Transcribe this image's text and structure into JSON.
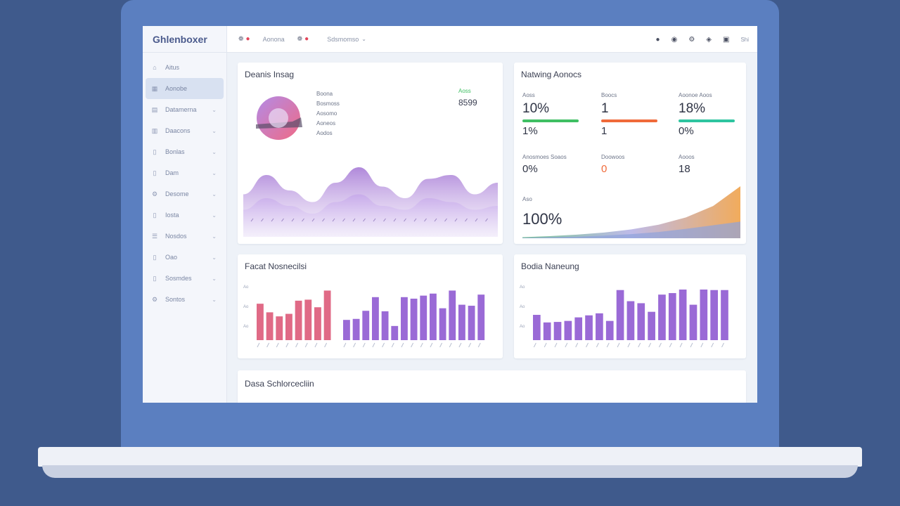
{
  "sidebar": {
    "brand": "Ghlenboxer",
    "items": [
      {
        "label": "Aitus",
        "icon": "home-icon",
        "active": false,
        "chevron": false
      },
      {
        "label": "Aonobe",
        "icon": "grid-icon",
        "active": true,
        "chevron": false
      },
      {
        "label": "Datamerna",
        "icon": "chart-icon",
        "active": false,
        "chevron": true
      },
      {
        "label": "Daacons",
        "icon": "folder-icon",
        "active": false,
        "chevron": true
      },
      {
        "label": "Bonlas",
        "icon": "file-icon",
        "active": false,
        "chevron": true
      },
      {
        "label": "Dam",
        "icon": "file-icon",
        "active": false,
        "chevron": true
      },
      {
        "label": "Desome",
        "icon": "gear-icon",
        "active": false,
        "chevron": true
      },
      {
        "label": "Iosta",
        "icon": "file-icon",
        "active": false,
        "chevron": true
      },
      {
        "label": "Nosdos",
        "icon": "list-icon",
        "active": false,
        "chevron": true
      },
      {
        "label": "Oao",
        "icon": "file-icon",
        "active": false,
        "chevron": true
      },
      {
        "label": "Sosmdes",
        "icon": "file-icon",
        "active": false,
        "chevron": true
      },
      {
        "label": "Sontos",
        "icon": "gear-icon",
        "active": false,
        "chevron": true
      }
    ]
  },
  "topbar": {
    "links": [
      "Aonona",
      "Sdsmomso"
    ],
    "menu": "Shi",
    "icons": [
      "bell-icon",
      "user-icon",
      "settings-icon",
      "message-icon",
      "lock-icon"
    ]
  },
  "card1": {
    "title": "Deanis Insag",
    "legend": [
      "Boona",
      "Bosmoss",
      "Aosomo",
      "Aoneos",
      "Aodos"
    ],
    "stat_label": "Aoss",
    "stat_value": "8599",
    "chart_data": {
      "type": "area",
      "series": [
        {
          "name": "",
          "values": [
            0.55,
            0.8,
            0.6,
            0.45,
            0.7,
            0.9,
            0.65,
            0.5,
            0.75,
            0.8,
            0.55,
            0.7
          ]
        },
        {
          "name": "",
          "values": [
            0.35,
            0.5,
            0.4,
            0.3,
            0.45,
            0.55,
            0.4,
            0.35,
            0.5,
            0.45,
            0.35,
            0.4
          ]
        }
      ]
    }
  },
  "card2": {
    "title": "Natwing Aonocs",
    "kpis": [
      {
        "label": "Aoss",
        "value": "10%",
        "color": "#3fbf63",
        "sub": "1%"
      },
      {
        "label": "Boocs",
        "value": "1",
        "color": "#f06a3a",
        "sub": "1"
      },
      {
        "label": "Aoonoe Aoos",
        "value": "18%",
        "color": "#2ec5a0",
        "sub": "0%"
      }
    ],
    "row2": [
      {
        "label": "Anosmoes Soaos",
        "value": "0%"
      },
      {
        "label": "Doowoos",
        "value": "0"
      },
      {
        "label": "Aooos",
        "value": "18"
      }
    ],
    "total_label": "Aso",
    "total_value": "100%",
    "chart_data": {
      "type": "area",
      "series": [
        {
          "name": "",
          "values": [
            0.02,
            0.04,
            0.07,
            0.11,
            0.17,
            0.26,
            0.4,
            0.62,
            1.0
          ]
        },
        {
          "name": "",
          "values": [
            0.01,
            0.02,
            0.03,
            0.05,
            0.08,
            0.12,
            0.18,
            0.25,
            0.32
          ]
        }
      ]
    }
  },
  "card3": {
    "title": "Facat Nosnecilsi",
    "chart_data": {
      "type": "bar",
      "ylabels": [
        "Ao",
        "Ao",
        "Ao"
      ],
      "groups": [
        {
          "color": "#e06a86",
          "values": [
            0.72,
            0.55,
            0.47,
            0.52,
            0.78,
            0.8,
            0.65,
            0.98
          ]
        },
        {
          "color": "#9a6ad6",
          "values": [
            0.4,
            0.42,
            0.58,
            0.85,
            0.57,
            0.28,
            0.85,
            0.82,
            0.88,
            0.92,
            0.63,
            0.98,
            0.7,
            0.68,
            0.9
          ]
        }
      ]
    }
  },
  "card4": {
    "title": "Bodia Naneung",
    "chart_data": {
      "type": "bar",
      "ylabels": [
        "Ao",
        "Ao",
        "Ao"
      ],
      "groups": [
        {
          "color": "#9a6ad6",
          "values": [
            0.5,
            0.35,
            0.36,
            0.38,
            0.45,
            0.49,
            0.53,
            0.38,
            0.99,
            0.77,
            0.73,
            0.56,
            0.9,
            0.93,
            1.0,
            0.7,
            1.0,
            0.99,
            0.99
          ]
        }
      ]
    }
  },
  "card5": {
    "title": "Dasa Schlorcecliin"
  }
}
